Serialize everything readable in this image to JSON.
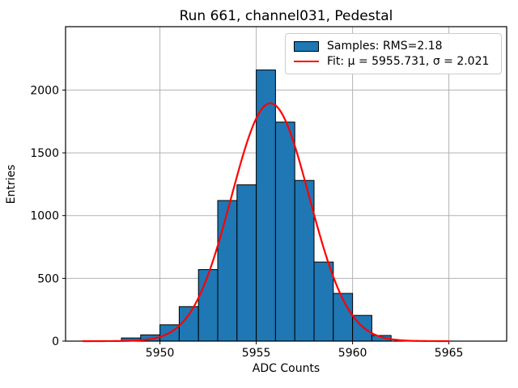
{
  "chart_data": {
    "type": "bar",
    "subtype": "histogram-with-gaussian-fit",
    "title": "Run 661, channel031, Pedestal",
    "xlabel": "ADC Counts",
    "ylabel": "Entries",
    "xlim": [
      5945.1,
      5968.0
    ],
    "ylim": [
      0,
      2505
    ],
    "xticks": [
      5950,
      5955,
      5960,
      5965
    ],
    "yticks": [
      0,
      500,
      1000,
      1500,
      2000
    ],
    "grid": true,
    "legend_position": "upper right",
    "bins": {
      "bin_width": 1,
      "left_edges": [
        5948,
        5949,
        5950,
        5951,
        5952,
        5953,
        5954,
        5955,
        5956,
        5957,
        5958,
        5959,
        5960,
        5961
      ],
      "counts": [
        25,
        50,
        130,
        275,
        570,
        1120,
        1245,
        2160,
        1745,
        1280,
        630,
        380,
        205,
        45
      ]
    },
    "fit_curve": {
      "mu": 5955.731,
      "sigma": 2.021,
      "amplitude": 1895,
      "x_start": 5946.0,
      "x_end": 5965.0
    },
    "legend": [
      {
        "label": "Samples: RMS=2.18",
        "swatch": "patch"
      },
      {
        "label": "Fit: μ = 5955.731, σ = 2.021",
        "swatch": "line"
      }
    ],
    "colors": {
      "bar_fill": "#1f77b4",
      "bar_edge": "#000000",
      "fit_line": "#ff0000",
      "grid": "#b2b2b2",
      "spine": "#000000",
      "text": "#000000",
      "legend_border": "#cccccc"
    }
  }
}
